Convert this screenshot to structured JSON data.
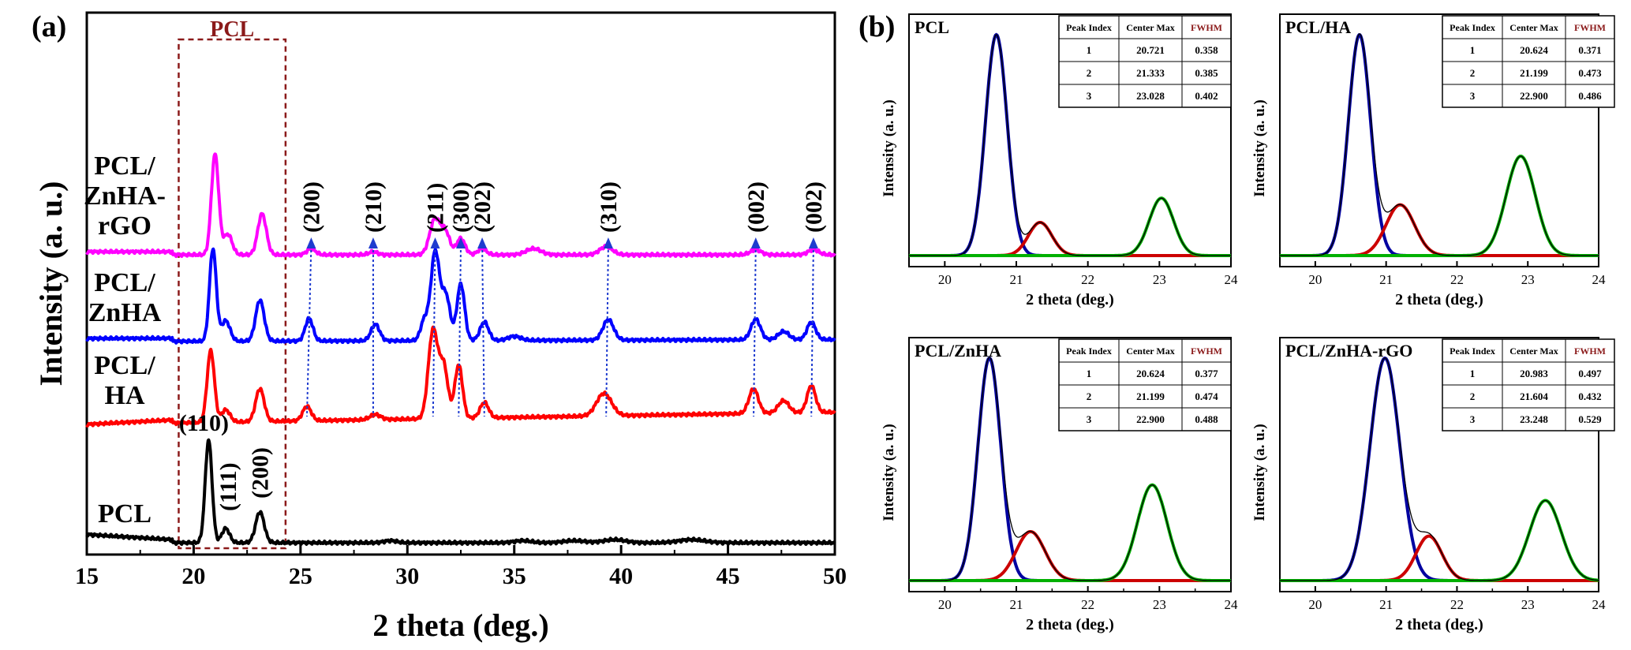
{
  "panel_a": {
    "panel_label": "(a)",
    "chart_data": {
      "type": "line",
      "title": "",
      "xlabel": "2 theta (deg.)",
      "ylabel": "Intensity (a. u.)",
      "xlim": [
        15,
        50
      ],
      "x_ticks": [
        "15",
        "20",
        "25",
        "30",
        "35",
        "40",
        "45",
        "50"
      ],
      "region_label": "PCL",
      "region_x": [
        19.3,
        24.3
      ],
      "series": [
        {
          "name": "PCL",
          "label_lines": [
            "PCL"
          ],
          "color": "#000000",
          "offset": 0,
          "peaks": [
            [
              20.7,
              100,
              0.16
            ],
            [
              21.5,
              14,
              0.18
            ],
            [
              23.1,
              30,
              0.2
            ],
            [
              29.2,
              2,
              0.3
            ],
            [
              35.4,
              2,
              0.4
            ],
            [
              37.8,
              2,
              0.5
            ],
            [
              39.7,
              3,
              0.5
            ],
            [
              43.3,
              3,
              0.6
            ]
          ],
          "start_y": 5,
          "end_y": 0,
          "slope_end": 19
        },
        {
          "name": "PCL/HA",
          "label_lines": [
            "PCL/",
            "HA"
          ],
          "color": "#ff0000",
          "offset": 150,
          "peaks": [
            [
              20.8,
              70,
              0.17
            ],
            [
              21.5,
              12,
              0.2
            ],
            [
              23.1,
              32,
              0.2
            ],
            [
              25.3,
              14,
              0.2
            ],
            [
              28.5,
              5,
              0.25
            ],
            [
              31.2,
              86,
              0.22
            ],
            [
              31.7,
              50,
              0.2
            ],
            [
              32.4,
              52,
              0.18
            ],
            [
              33.6,
              15,
              0.2
            ],
            [
              39.2,
              22,
              0.35
            ],
            [
              46.2,
              24,
              0.22
            ],
            [
              47.6,
              12,
              0.25
            ],
            [
              48.9,
              26,
              0.2
            ]
          ],
          "start_y": -3,
          "end_y": 12,
          "slope_end": 19
        },
        {
          "name": "PCL/ZnHA",
          "label_lines": [
            "PCL/",
            "ZnHA"
          ],
          "color": "#0000ff",
          "offset": 255,
          "peaks": [
            [
              20.9,
              90,
              0.16
            ],
            [
              21.5,
              20,
              0.2
            ],
            [
              23.1,
              40,
              0.2
            ],
            [
              25.4,
              22,
              0.18
            ],
            [
              28.5,
              16,
              0.2
            ],
            [
              30.8,
              20,
              0.18
            ],
            [
              31.3,
              86,
              0.2
            ],
            [
              31.8,
              44,
              0.2
            ],
            [
              32.5,
              55,
              0.18
            ],
            [
              33.6,
              18,
              0.2
            ],
            [
              35.0,
              4,
              0.3
            ],
            [
              39.4,
              20,
              0.25
            ],
            [
              46.3,
              20,
              0.22
            ],
            [
              47.6,
              8,
              0.25
            ],
            [
              48.9,
              17,
              0.2
            ]
          ],
          "start_y": 0,
          "end_y": 2,
          "slope_end": 19
        },
        {
          "name": "PCL/ZnHA-rGO",
          "label_lines": [
            "PCL/",
            "ZnHA-",
            "rGO"
          ],
          "color": "#ff00ff",
          "offset": 365,
          "peaks": [
            [
              21.0,
              98,
              0.17
            ],
            [
              21.6,
              20,
              0.2
            ],
            [
              23.2,
              40,
              0.2
            ],
            [
              25.5,
              6,
              0.2
            ],
            [
              28.4,
              3,
              0.2
            ],
            [
              31.3,
              35,
              0.25
            ],
            [
              31.8,
              20,
              0.2
            ],
            [
              32.5,
              16,
              0.2
            ],
            [
              33.5,
              6,
              0.2
            ],
            [
              35.9,
              6,
              0.35
            ],
            [
              39.3,
              8,
              0.3
            ],
            [
              46.3,
              5,
              0.25
            ],
            [
              49.0,
              5,
              0.25
            ]
          ],
          "start_y": 0,
          "end_y": 0,
          "slope_end": 19
        }
      ],
      "hkl_top": [
        {
          "label": "(200)",
          "x": 25.5,
          "bottom_x": 25.3
        },
        {
          "label": "(210)",
          "x": 28.4,
          "bottom_x": 28.4
        },
        {
          "label": "(211)",
          "x": 31.3,
          "bottom_x": 31.2
        },
        {
          "label": "(300)",
          "x": 32.5,
          "bottom_x": 32.4
        },
        {
          "label": "(202)",
          "x": 33.5,
          "bottom_x": 33.6
        },
        {
          "label": "(310)",
          "x": 39.4,
          "bottom_x": 39.3
        },
        {
          "label": "(002)",
          "x": 46.3,
          "bottom_x": 46.2
        },
        {
          "label": "(002)",
          "x": 49.0,
          "bottom_x": 48.9
        }
      ],
      "hkl_pcl": [
        {
          "label": "(110)",
          "x": 20.7
        },
        {
          "label": "(111)",
          "x": 21.6
        },
        {
          "label": "(200)",
          "x": 23.1
        }
      ]
    }
  },
  "panel_b": {
    "panel_label": "(b)",
    "subplots": [
      {
        "title": "PCL",
        "table": {
          "headers": [
            "Peak Index",
            "Center Max",
            "FWHM"
          ],
          "rows": [
            [
              "1",
              "20.721",
              "0.358"
            ],
            [
              "2",
              "21.333",
              "0.385"
            ],
            [
              "3",
              "23.028",
              "0.402"
            ]
          ]
        },
        "chart_data": {
          "type": "line",
          "xlabel": "2 theta (deg.)",
          "ylabel": "Intensity (a. u.)",
          "xlim": [
            19.5,
            24
          ],
          "x_ticks": [
            "20",
            "21",
            "22",
            "23",
            "24"
          ],
          "peaks": [
            {
              "center": 20.721,
              "fwhm": 0.358,
              "height": 1.0,
              "color": "#0000a0"
            },
            {
              "center": 21.333,
              "fwhm": 0.385,
              "height": 0.15,
              "color": "#cc0000"
            },
            {
              "center": 23.028,
              "fwhm": 0.402,
              "height": 0.26,
              "color": "#00b000"
            }
          ]
        }
      },
      {
        "title": "PCL/HA",
        "table": {
          "headers": [
            "Peak Index",
            "Center Max",
            "FWHM"
          ],
          "rows": [
            [
              "1",
              "20.624",
              "0.371"
            ],
            [
              "2",
              "21.199",
              "0.473"
            ],
            [
              "3",
              "22.900",
              "0.486"
            ]
          ]
        },
        "chart_data": {
          "type": "line",
          "xlabel": "2 theta (deg.)",
          "ylabel": "Intensity (a. u.)",
          "xlim": [
            19.5,
            24
          ],
          "x_ticks": [
            "20",
            "21",
            "22",
            "23",
            "24"
          ],
          "peaks": [
            {
              "center": 20.624,
              "fwhm": 0.371,
              "height": 1.0,
              "color": "#0000a0"
            },
            {
              "center": 21.199,
              "fwhm": 0.473,
              "height": 0.23,
              "color": "#cc0000"
            },
            {
              "center": 22.9,
              "fwhm": 0.486,
              "height": 0.45,
              "color": "#00b000"
            }
          ]
        }
      },
      {
        "title": "PCL/ZnHA",
        "table": {
          "headers": [
            "Peak Index",
            "Center Max",
            "FWHM"
          ],
          "rows": [
            [
              "1",
              "20.624",
              "0.377"
            ],
            [
              "2",
              "21.199",
              "0.474"
            ],
            [
              "3",
              "22.900",
              "0.488"
            ]
          ]
        },
        "chart_data": {
          "type": "line",
          "xlabel": "2 theta (deg.)",
          "ylabel": "Intensity (a. u.)",
          "xlim": [
            19.5,
            24
          ],
          "x_ticks": [
            "20",
            "21",
            "22",
            "23",
            "24"
          ],
          "peaks": [
            {
              "center": 20.624,
              "fwhm": 0.377,
              "height": 1.0,
              "color": "#0000a0"
            },
            {
              "center": 21.199,
              "fwhm": 0.474,
              "height": 0.22,
              "color": "#cc0000"
            },
            {
              "center": 22.9,
              "fwhm": 0.488,
              "height": 0.43,
              "color": "#00b000"
            }
          ]
        }
      },
      {
        "title": "PCL/ZnHA-rGO",
        "table": {
          "headers": [
            "Peak Index",
            "Center Max",
            "FWHM"
          ],
          "rows": [
            [
              "1",
              "20.983",
              "0.497"
            ],
            [
              "2",
              "21.604",
              "0.432"
            ],
            [
              "3",
              "23.248",
              "0.529"
            ]
          ]
        },
        "chart_data": {
          "type": "line",
          "xlabel": "2 theta (deg.)",
          "ylabel": "Intensity (a. u.)",
          "xlim": [
            19.5,
            24
          ],
          "x_ticks": [
            "20",
            "21",
            "22",
            "23",
            "24"
          ],
          "peaks": [
            {
              "center": 20.983,
              "fwhm": 0.497,
              "height": 1.0,
              "color": "#0000a0"
            },
            {
              "center": 21.604,
              "fwhm": 0.432,
              "height": 0.2,
              "color": "#cc0000"
            },
            {
              "center": 23.248,
              "fwhm": 0.529,
              "height": 0.36,
              "color": "#00b000"
            }
          ]
        }
      }
    ]
  }
}
